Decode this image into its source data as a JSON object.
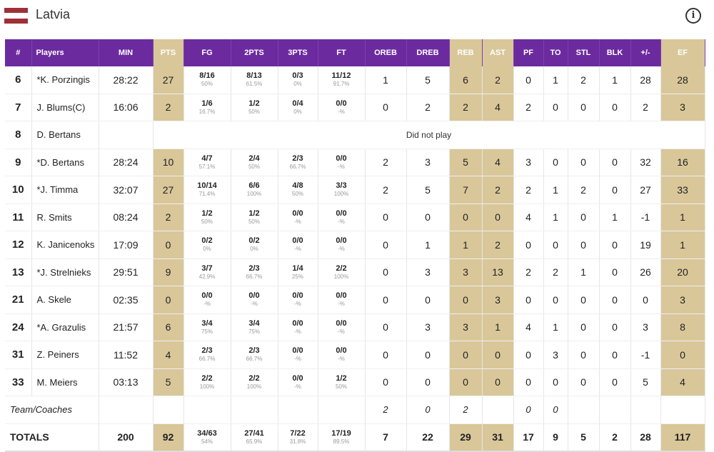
{
  "team": {
    "name": "Latvia"
  },
  "columns": [
    "#",
    "Players",
    "MIN",
    "PTS",
    "FG",
    "2PTS",
    "3PTS",
    "FT",
    "OREB",
    "DREB",
    "REB",
    "AST",
    "PF",
    "TO",
    "STL",
    "BLK",
    "+/-",
    "EF"
  ],
  "players": [
    {
      "num": "6",
      "name": "*K. Porzingis",
      "min": "28:22",
      "pts": "27",
      "fg": "8/16",
      "fg_pct": "50%",
      "p2": "8/13",
      "p2_pct": "61.5%",
      "p3": "0/3",
      "p3_pct": "0%",
      "ft": "11/12",
      "ft_pct": "91.7%",
      "oreb": "1",
      "dreb": "5",
      "reb": "6",
      "ast": "2",
      "pf": "0",
      "to": "1",
      "stl": "2",
      "blk": "1",
      "pm": "28",
      "ef": "28"
    },
    {
      "num": "7",
      "name": "J. Blums(C)",
      "min": "16:06",
      "pts": "2",
      "fg": "1/6",
      "fg_pct": "16.7%",
      "p2": "1/2",
      "p2_pct": "50%",
      "p3": "0/4",
      "p3_pct": "0%",
      "ft": "0/0",
      "ft_pct": "-%",
      "oreb": "0",
      "dreb": "2",
      "reb": "2",
      "ast": "4",
      "pf": "2",
      "to": "0",
      "stl": "0",
      "blk": "0",
      "pm": "2",
      "ef": "3"
    },
    {
      "num": "8",
      "name": "D. Bertans",
      "dnp": "Did not play"
    },
    {
      "num": "9",
      "name": "*D. Bertans",
      "min": "28:24",
      "pts": "10",
      "fg": "4/7",
      "fg_pct": "57.1%",
      "p2": "2/4",
      "p2_pct": "50%",
      "p3": "2/3",
      "p3_pct": "66.7%",
      "ft": "0/0",
      "ft_pct": "-%",
      "oreb": "2",
      "dreb": "3",
      "reb": "5",
      "ast": "4",
      "pf": "3",
      "to": "0",
      "stl": "0",
      "blk": "0",
      "pm": "32",
      "ef": "16"
    },
    {
      "num": "10",
      "name": "*J. Timma",
      "min": "32:07",
      "pts": "27",
      "fg": "10/14",
      "fg_pct": "71.4%",
      "p2": "6/6",
      "p2_pct": "100%",
      "p3": "4/8",
      "p3_pct": "50%",
      "ft": "3/3",
      "ft_pct": "100%",
      "oreb": "2",
      "dreb": "5",
      "reb": "7",
      "ast": "2",
      "pf": "2",
      "to": "1",
      "stl": "2",
      "blk": "0",
      "pm": "27",
      "ef": "33"
    },
    {
      "num": "11",
      "name": "R. Smits",
      "min": "08:24",
      "pts": "2",
      "fg": "1/2",
      "fg_pct": "50%",
      "p2": "1/2",
      "p2_pct": "50%",
      "p3": "0/0",
      "p3_pct": "-%",
      "ft": "0/0",
      "ft_pct": "-%",
      "oreb": "0",
      "dreb": "0",
      "reb": "0",
      "ast": "0",
      "pf": "4",
      "to": "1",
      "stl": "0",
      "blk": "1",
      "pm": "-1",
      "ef": "1"
    },
    {
      "num": "12",
      "name": "K. Janicenoks",
      "min": "17:09",
      "pts": "0",
      "fg": "0/2",
      "fg_pct": "0%",
      "p2": "0/2",
      "p2_pct": "0%",
      "p3": "0/0",
      "p3_pct": "-%",
      "ft": "0/0",
      "ft_pct": "-%",
      "oreb": "0",
      "dreb": "1",
      "reb": "1",
      "ast": "2",
      "pf": "0",
      "to": "0",
      "stl": "0",
      "blk": "0",
      "pm": "19",
      "ef": "1"
    },
    {
      "num": "13",
      "name": "*J. Strelnieks",
      "min": "29:51",
      "pts": "9",
      "fg": "3/7",
      "fg_pct": "42.9%",
      "p2": "2/3",
      "p2_pct": "66.7%",
      "p3": "1/4",
      "p3_pct": "25%",
      "ft": "2/2",
      "ft_pct": "100%",
      "oreb": "0",
      "dreb": "3",
      "reb": "3",
      "ast": "13",
      "pf": "2",
      "to": "2",
      "stl": "1",
      "blk": "0",
      "pm": "26",
      "ef": "20"
    },
    {
      "num": "21",
      "name": "A. Skele",
      "min": "02:35",
      "pts": "0",
      "fg": "0/0",
      "fg_pct": "-%",
      "p2": "0/0",
      "p2_pct": "-%",
      "p3": "0/0",
      "p3_pct": "-%",
      "ft": "0/0",
      "ft_pct": "-%",
      "oreb": "0",
      "dreb": "0",
      "reb": "0",
      "ast": "3",
      "pf": "0",
      "to": "0",
      "stl": "0",
      "blk": "0",
      "pm": "0",
      "ef": "3"
    },
    {
      "num": "24",
      "name": "*A. Grazulis",
      "min": "21:57",
      "pts": "6",
      "fg": "3/4",
      "fg_pct": "75%",
      "p2": "3/4",
      "p2_pct": "75%",
      "p3": "0/0",
      "p3_pct": "-%",
      "ft": "0/0",
      "ft_pct": "-%",
      "oreb": "0",
      "dreb": "3",
      "reb": "3",
      "ast": "1",
      "pf": "4",
      "to": "1",
      "stl": "0",
      "blk": "0",
      "pm": "3",
      "ef": "8"
    },
    {
      "num": "31",
      "name": "Z. Peiners",
      "min": "11:52",
      "pts": "4",
      "fg": "2/3",
      "fg_pct": "66.7%",
      "p2": "2/3",
      "p2_pct": "66.7%",
      "p3": "0/0",
      "p3_pct": "-%",
      "ft": "0/0",
      "ft_pct": "-%",
      "oreb": "0",
      "dreb": "0",
      "reb": "0",
      "ast": "0",
      "pf": "0",
      "to": "3",
      "stl": "0",
      "blk": "0",
      "pm": "-1",
      "ef": "0"
    },
    {
      "num": "33",
      "name": "M. Meiers",
      "min": "03:13",
      "pts": "5",
      "fg": "2/2",
      "fg_pct": "100%",
      "p2": "2/2",
      "p2_pct": "100%",
      "p3": "0/0",
      "p3_pct": "-%",
      "ft": "1/2",
      "ft_pct": "50%",
      "oreb": "0",
      "dreb": "0",
      "reb": "0",
      "ast": "0",
      "pf": "0",
      "to": "0",
      "stl": "0",
      "blk": "0",
      "pm": "5",
      "ef": "4"
    }
  ],
  "team_row": {
    "label": "Team/Coaches",
    "oreb": "2",
    "dreb": "0",
    "reb": "2",
    "pf": "0",
    "to": "0"
  },
  "totals": {
    "label": "TOTALS",
    "min": "200",
    "pts": "92",
    "fg": "34/63",
    "fg_pct": "54%",
    "p2": "27/41",
    "p2_pct": "65.9%",
    "p3": "7/22",
    "p3_pct": "31.8%",
    "ft": "17/19",
    "ft_pct": "89.5%",
    "oreb": "7",
    "dreb": "22",
    "reb": "29",
    "ast": "31",
    "pf": "17",
    "to": "9",
    "stl": "5",
    "blk": "2",
    "pm": "28",
    "ef": "117"
  },
  "colors": {
    "header": "#6B2B9E",
    "highlight": "#D9C79A",
    "flag": "#9E3039"
  }
}
